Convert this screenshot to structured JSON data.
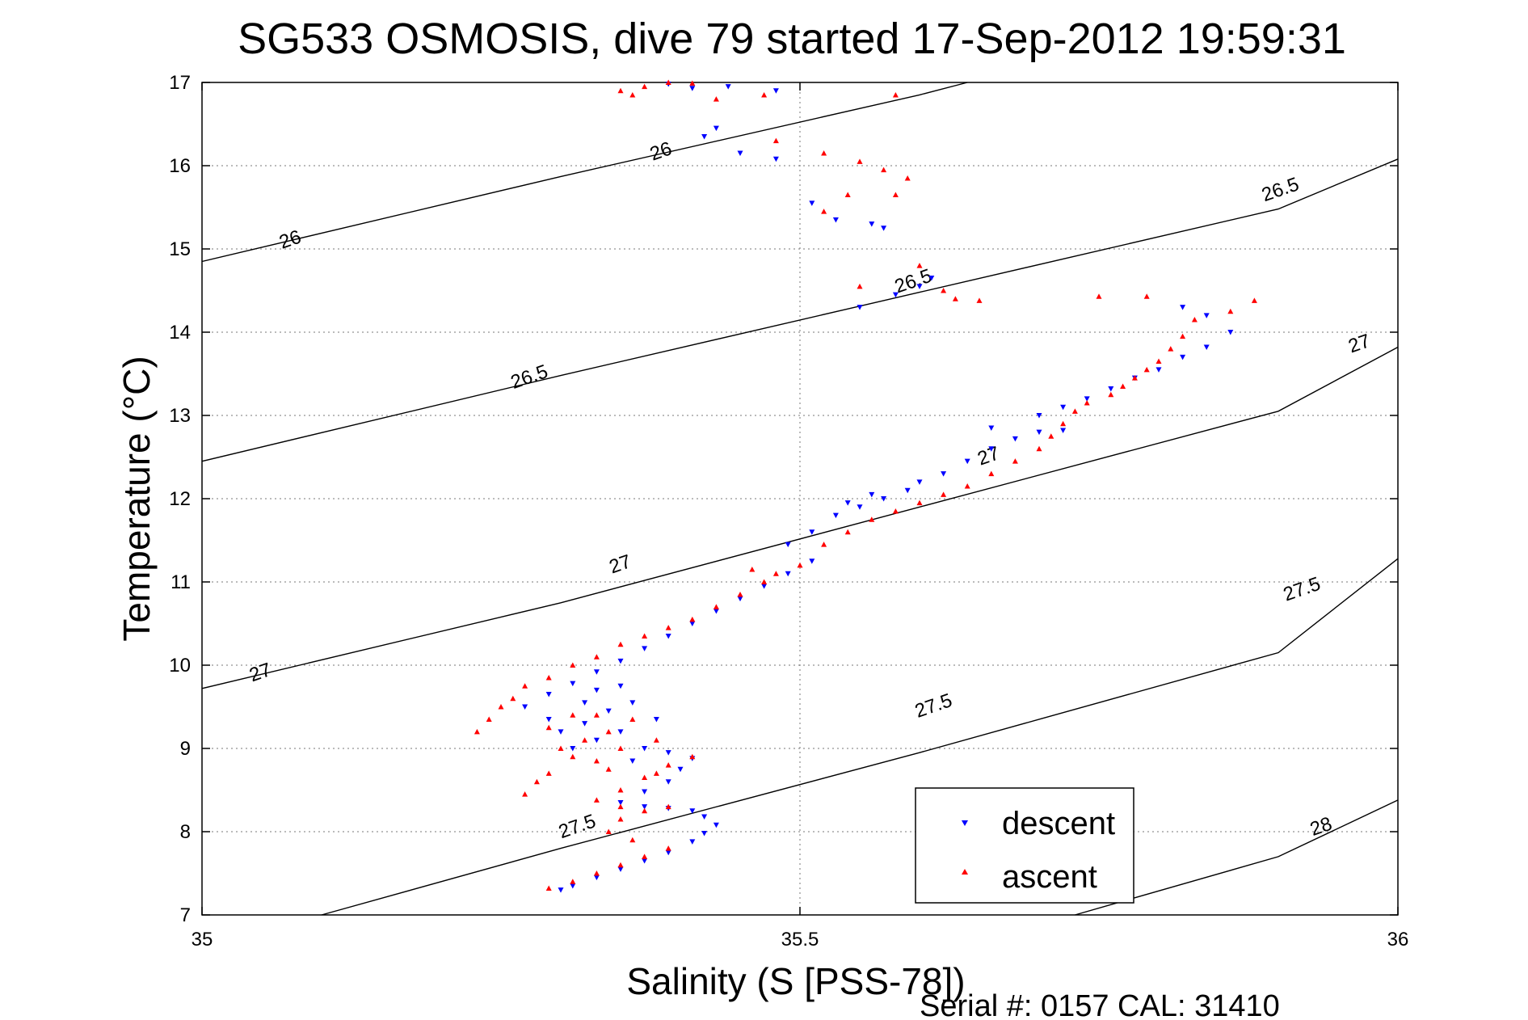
{
  "chart_data": {
    "type": "scatter",
    "title": "SG533 OSMOSIS, dive 79 started 17-Sep-2012 19:59:31",
    "xlabel": "Salinity (S [PSS-78])",
    "ylabel": "Temperature (°C)",
    "footer": "Serial #: 0157  CAL: 31410",
    "xlim": [
      35,
      36
    ],
    "ylim": [
      7,
      17
    ],
    "xticks": [
      35,
      35.5,
      36
    ],
    "xtick_labels": [
      "35",
      "35.5",
      "36"
    ],
    "yticks": [
      7,
      8,
      9,
      10,
      11,
      12,
      13,
      14,
      15,
      16,
      17
    ],
    "ytick_labels": [
      "7",
      "8",
      "9",
      "10",
      "11",
      "12",
      "13",
      "14",
      "15",
      "16",
      "17"
    ],
    "grid": true,
    "legend_position": "bottom-right",
    "density_contours": [
      {
        "label": "26",
        "points": [
          [
            35,
            14.85
          ],
          [
            35.3,
            15.87
          ],
          [
            35.6,
            16.85
          ],
          [
            35.64,
            17.0
          ]
        ],
        "labels_at": [
          [
            35.074,
            15.1
          ],
          [
            35.384,
            16.16
          ]
        ]
      },
      {
        "label": "26.5",
        "points": [
          [
            35,
            12.45
          ],
          [
            35.3,
            13.48
          ],
          [
            35.6,
            14.48
          ],
          [
            35.9,
            15.48
          ],
          [
            36,
            16.08
          ]
        ],
        "labels_at": [
          [
            35.274,
            13.45
          ],
          [
            35.595,
            14.6
          ],
          [
            35.902,
            15.7
          ]
        ]
      },
      {
        "label": "27",
        "points": [
          [
            35,
            9.72
          ],
          [
            35.3,
            10.75
          ],
          [
            35.6,
            11.9
          ],
          [
            35.9,
            13.05
          ],
          [
            36,
            13.82
          ]
        ],
        "labels_at": [
          [
            35.049,
            9.9
          ],
          [
            35.35,
            11.2
          ],
          [
            35.658,
            12.5
          ],
          [
            35.968,
            13.85
          ]
        ]
      },
      {
        "label": "27.5",
        "points": [
          [
            35.1,
            7.0
          ],
          [
            35.3,
            7.8
          ],
          [
            35.6,
            8.95
          ],
          [
            35.9,
            10.15
          ],
          [
            36,
            11.28
          ]
        ],
        "labels_at": [
          [
            35.314,
            8.05
          ],
          [
            35.612,
            9.5
          ],
          [
            35.92,
            10.9
          ]
        ]
      },
      {
        "label": "28",
        "points": [
          [
            35.73,
            7.0
          ],
          [
            35.9,
            7.7
          ],
          [
            36,
            8.38
          ]
        ],
        "labels_at": [
          [
            35.936,
            8.05
          ]
        ]
      }
    ],
    "series": [
      {
        "name": "descent",
        "color": "#0000ff",
        "marker": "triangle-down",
        "points": [
          [
            35.3,
            7.3
          ],
          [
            35.31,
            7.35
          ],
          [
            35.33,
            7.45
          ],
          [
            35.35,
            7.55
          ],
          [
            35.37,
            7.65
          ],
          [
            35.39,
            7.75
          ],
          [
            35.41,
            7.88
          ],
          [
            35.42,
            7.98
          ],
          [
            35.43,
            8.08
          ],
          [
            35.42,
            8.18
          ],
          [
            35.41,
            8.25
          ],
          [
            35.39,
            8.28
          ],
          [
            35.37,
            8.3
          ],
          [
            35.35,
            8.35
          ],
          [
            35.37,
            8.48
          ],
          [
            35.39,
            8.6
          ],
          [
            35.4,
            8.75
          ],
          [
            35.41,
            8.88
          ],
          [
            35.39,
            8.95
          ],
          [
            35.33,
            9.1
          ],
          [
            35.35,
            9.2
          ],
          [
            35.32,
            9.3
          ],
          [
            35.34,
            9.45
          ],
          [
            35.36,
            9.55
          ],
          [
            35.33,
            9.7
          ],
          [
            35.35,
            9.75
          ],
          [
            35.3,
            9.2
          ],
          [
            35.37,
            9.0
          ],
          [
            35.31,
            9.0
          ],
          [
            35.36,
            8.85
          ],
          [
            35.32,
            9.55
          ],
          [
            35.29,
            9.35
          ],
          [
            35.38,
            9.35
          ],
          [
            35.27,
            9.5
          ],
          [
            35.29,
            9.65
          ],
          [
            35.31,
            9.78
          ],
          [
            35.33,
            9.92
          ],
          [
            35.35,
            10.05
          ],
          [
            35.37,
            10.2
          ],
          [
            35.39,
            10.35
          ],
          [
            35.41,
            10.5
          ],
          [
            35.43,
            10.65
          ],
          [
            35.45,
            10.8
          ],
          [
            35.47,
            10.95
          ],
          [
            35.49,
            11.1
          ],
          [
            35.51,
            11.25
          ],
          [
            35.49,
            11.45
          ],
          [
            35.51,
            11.6
          ],
          [
            35.53,
            11.8
          ],
          [
            35.55,
            11.9
          ],
          [
            35.57,
            12.0
          ],
          [
            35.59,
            12.1
          ],
          [
            35.56,
            12.05
          ],
          [
            35.54,
            11.95
          ],
          [
            35.6,
            12.2
          ],
          [
            35.62,
            12.3
          ],
          [
            35.64,
            12.45
          ],
          [
            35.66,
            12.6
          ],
          [
            35.68,
            12.72
          ],
          [
            35.7,
            12.8
          ],
          [
            35.72,
            12.82
          ],
          [
            35.66,
            12.85
          ],
          [
            35.7,
            13.0
          ],
          [
            35.72,
            13.1
          ],
          [
            35.74,
            13.2
          ],
          [
            35.76,
            13.32
          ],
          [
            35.78,
            13.45
          ],
          [
            35.8,
            13.55
          ],
          [
            35.82,
            13.7
          ],
          [
            35.84,
            13.82
          ],
          [
            35.86,
            14.0
          ],
          [
            35.84,
            14.2
          ],
          [
            35.82,
            14.3
          ],
          [
            35.41,
            16.93
          ],
          [
            35.44,
            16.95
          ],
          [
            35.39,
            16.98
          ],
          [
            35.48,
            16.9
          ],
          [
            35.43,
            16.45
          ],
          [
            35.42,
            16.35
          ],
          [
            35.45,
            16.15
          ],
          [
            35.48,
            16.08
          ],
          [
            35.51,
            15.55
          ],
          [
            35.53,
            15.35
          ],
          [
            35.56,
            15.3
          ],
          [
            35.57,
            15.25
          ],
          [
            35.55,
            14.3
          ],
          [
            35.58,
            14.45
          ],
          [
            35.6,
            14.55
          ],
          [
            35.61,
            14.65
          ]
        ]
      },
      {
        "name": "ascent",
        "color": "#ff0000",
        "marker": "triangle-up",
        "points": [
          [
            35.29,
            7.32
          ],
          [
            35.31,
            7.4
          ],
          [
            35.33,
            7.5
          ],
          [
            35.35,
            7.6
          ],
          [
            35.37,
            7.7
          ],
          [
            35.39,
            7.8
          ],
          [
            35.36,
            7.9
          ],
          [
            35.34,
            8.0
          ],
          [
            35.35,
            8.15
          ],
          [
            35.37,
            8.25
          ],
          [
            35.39,
            8.3
          ],
          [
            35.35,
            8.3
          ],
          [
            35.33,
            8.38
          ],
          [
            35.35,
            8.5
          ],
          [
            35.37,
            8.65
          ],
          [
            35.39,
            8.8
          ],
          [
            35.41,
            8.9
          ],
          [
            35.38,
            8.7
          ],
          [
            35.34,
            8.75
          ],
          [
            35.27,
            8.45
          ],
          [
            35.28,
            8.6
          ],
          [
            35.29,
            8.7
          ],
          [
            35.3,
            9.0
          ],
          [
            35.32,
            9.1
          ],
          [
            35.34,
            9.2
          ],
          [
            35.33,
            9.4
          ],
          [
            35.31,
            9.4
          ],
          [
            35.35,
            9.0
          ],
          [
            35.29,
            9.25
          ],
          [
            35.36,
            9.35
          ],
          [
            35.31,
            8.9
          ],
          [
            35.38,
            9.1
          ],
          [
            35.33,
            8.85
          ],
          [
            35.23,
            9.2
          ],
          [
            35.24,
            9.35
          ],
          [
            35.25,
            9.5
          ],
          [
            35.26,
            9.6
          ],
          [
            35.27,
            9.75
          ],
          [
            35.29,
            9.85
          ],
          [
            35.31,
            10.0
          ],
          [
            35.33,
            10.1
          ],
          [
            35.35,
            10.25
          ],
          [
            35.37,
            10.35
          ],
          [
            35.39,
            10.45
          ],
          [
            35.41,
            10.55
          ],
          [
            35.43,
            10.7
          ],
          [
            35.45,
            10.85
          ],
          [
            35.47,
            11.0
          ],
          [
            35.46,
            11.15
          ],
          [
            35.48,
            11.1
          ],
          [
            35.5,
            11.2
          ],
          [
            35.52,
            11.45
          ],
          [
            35.54,
            11.6
          ],
          [
            35.56,
            11.75
          ],
          [
            35.58,
            11.85
          ],
          [
            35.6,
            11.95
          ],
          [
            35.62,
            12.05
          ],
          [
            35.64,
            12.15
          ],
          [
            35.66,
            12.3
          ],
          [
            35.68,
            12.45
          ],
          [
            35.7,
            12.6
          ],
          [
            35.71,
            12.75
          ],
          [
            35.72,
            12.9
          ],
          [
            35.73,
            13.05
          ],
          [
            35.74,
            13.15
          ],
          [
            35.76,
            13.25
          ],
          [
            35.77,
            13.35
          ],
          [
            35.78,
            13.45
          ],
          [
            35.79,
            13.55
          ],
          [
            35.8,
            13.65
          ],
          [
            35.81,
            13.8
          ],
          [
            35.82,
            13.95
          ],
          [
            35.83,
            14.15
          ],
          [
            35.86,
            14.25
          ],
          [
            35.88,
            14.38
          ],
          [
            35.75,
            14.43
          ],
          [
            35.79,
            14.43
          ],
          [
            35.35,
            16.9
          ],
          [
            35.37,
            16.95
          ],
          [
            35.39,
            17.0
          ],
          [
            35.41,
            16.99
          ],
          [
            35.36,
            16.85
          ],
          [
            35.43,
            16.8
          ],
          [
            35.47,
            16.85
          ],
          [
            35.58,
            16.85
          ],
          [
            35.48,
            16.3
          ],
          [
            35.52,
            16.15
          ],
          [
            35.55,
            16.05
          ],
          [
            35.57,
            15.95
          ],
          [
            35.59,
            15.85
          ],
          [
            35.58,
            15.65
          ],
          [
            35.54,
            15.65
          ],
          [
            35.52,
            15.45
          ],
          [
            35.55,
            14.55
          ],
          [
            35.6,
            14.8
          ],
          [
            35.62,
            14.5
          ],
          [
            35.65,
            14.38
          ],
          [
            35.63,
            14.4
          ]
        ]
      }
    ]
  }
}
